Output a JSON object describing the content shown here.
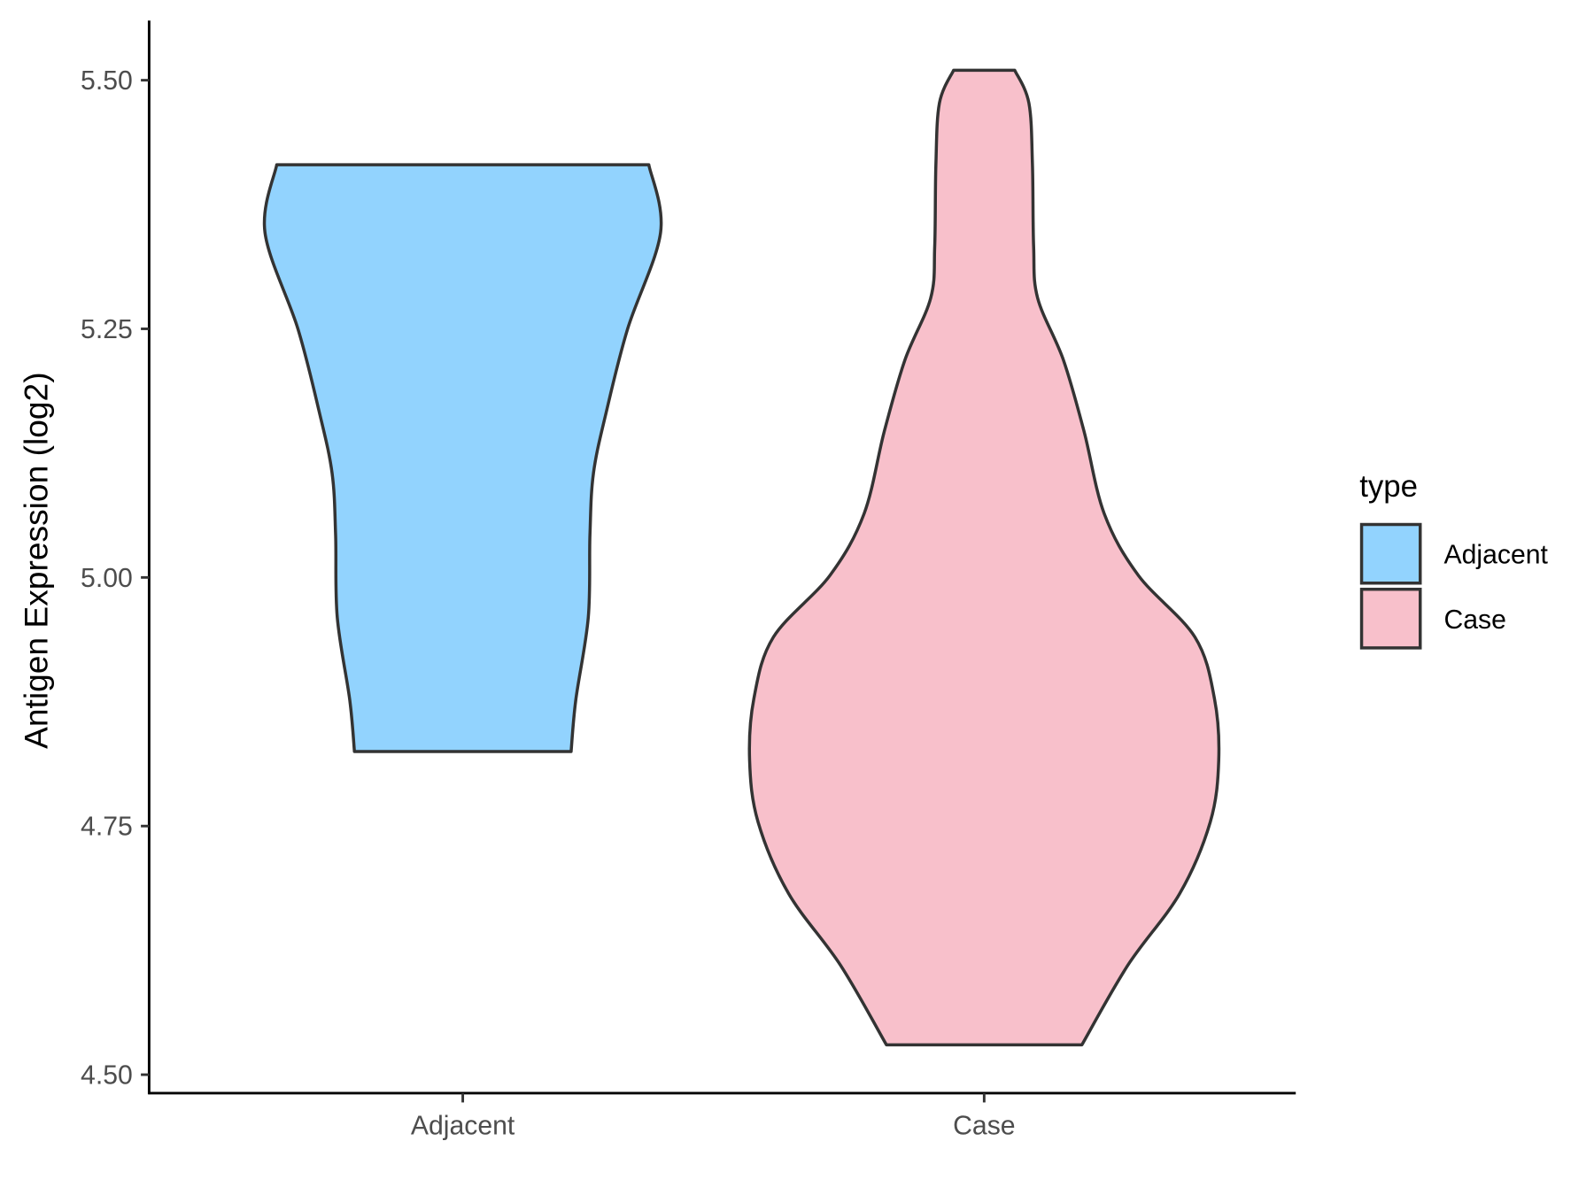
{
  "chart_data": {
    "type": "violin",
    "ylabel": "Antigen Expression (log2)",
    "xlabel": "",
    "ylim": [
      4.5,
      5.5
    ],
    "yticks": [
      "4.50",
      "4.75",
      "5.00",
      "5.25",
      "5.50"
    ],
    "categories": [
      "Adjacent",
      "Case"
    ],
    "legend": {
      "title": "type",
      "placement": "right",
      "entries": [
        "Adjacent",
        "Case"
      ]
    },
    "grid": false,
    "series": [
      {
        "name": "Adjacent",
        "color": "#92d3fe",
        "profile": [
          [
            5.415,
            0.79
          ],
          [
            5.347,
            0.84
          ],
          [
            5.25,
            0.7
          ],
          [
            5.167,
            0.61
          ],
          [
            5.105,
            0.555
          ],
          [
            5.043,
            0.54
          ],
          [
            4.96,
            0.533
          ],
          [
            4.877,
            0.48
          ],
          [
            4.825,
            0.46
          ]
        ]
      },
      {
        "name": "Case",
        "color": "#f8c0cb",
        "profile": [
          [
            5.51,
            0.13
          ],
          [
            5.477,
            0.19
          ],
          [
            5.415,
            0.205
          ],
          [
            5.333,
            0.21
          ],
          [
            5.281,
            0.227
          ],
          [
            5.219,
            0.336
          ],
          [
            5.147,
            0.424
          ],
          [
            5.064,
            0.51
          ],
          [
            5.002,
            0.655
          ],
          [
            4.94,
            0.895
          ],
          [
            4.878,
            0.978
          ],
          [
            4.816,
            0.996
          ],
          [
            4.754,
            0.96
          ],
          [
            4.682,
            0.83
          ],
          [
            4.61,
            0.61
          ],
          [
            4.53,
            0.415
          ]
        ]
      }
    ]
  }
}
